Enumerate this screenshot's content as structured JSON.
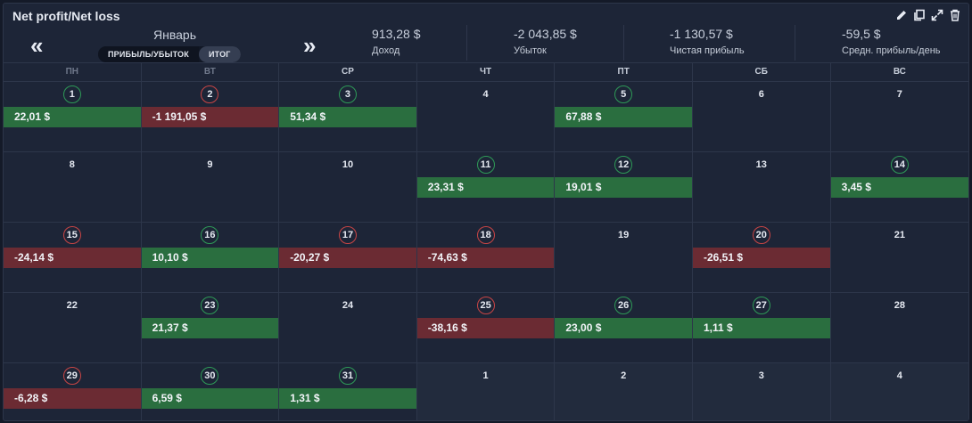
{
  "widget": {
    "title": "Net profit/Net loss"
  },
  "tools": [
    "pencil-icon",
    "copy-icon",
    "expand-icon",
    "trash-icon"
  ],
  "nav": {
    "prev": "«",
    "next": "»",
    "month": "Январь"
  },
  "toggle": {
    "left": "ПРИБЫЛЬ/УБЫТОК",
    "right": "ИТОГ"
  },
  "stats": [
    {
      "value": "913,28 $",
      "label": "Доход"
    },
    {
      "value": "-2 043,85 $",
      "label": "Убыток"
    },
    {
      "value": "-1 130,57 $",
      "label": "Чистая прибыль"
    },
    {
      "value": "-59,5 $",
      "label": "Средн. прибыль/день"
    }
  ],
  "weekdays": [
    "ПН",
    "ВТ",
    "СР",
    "ЧТ",
    "ПТ",
    "СБ",
    "ВС"
  ],
  "weeks": [
    [
      {
        "day": "1",
        "pl": "22,01 $",
        "sign": "pos"
      },
      {
        "day": "2",
        "pl": "-1 191,05 $",
        "sign": "neg"
      },
      {
        "day": "3",
        "pl": "51,34 $",
        "sign": "pos"
      },
      {
        "day": "4",
        "pl": "",
        "sign": ""
      },
      {
        "day": "5",
        "pl": "67,88 $",
        "sign": "pos"
      },
      {
        "day": "6",
        "pl": "",
        "sign": ""
      },
      {
        "day": "7",
        "pl": "",
        "sign": ""
      }
    ],
    [
      {
        "day": "8",
        "pl": "",
        "sign": ""
      },
      {
        "day": "9",
        "pl": "",
        "sign": ""
      },
      {
        "day": "10",
        "pl": "",
        "sign": ""
      },
      {
        "day": "11",
        "pl": "23,31 $",
        "sign": "pos"
      },
      {
        "day": "12",
        "pl": "19,01 $",
        "sign": "pos"
      },
      {
        "day": "13",
        "pl": "",
        "sign": ""
      },
      {
        "day": "14",
        "pl": "3,45 $",
        "sign": "pos"
      }
    ],
    [
      {
        "day": "15",
        "pl": "-24,14 $",
        "sign": "neg"
      },
      {
        "day": "16",
        "pl": "10,10 $",
        "sign": "pos"
      },
      {
        "day": "17",
        "pl": "-20,27 $",
        "sign": "neg"
      },
      {
        "day": "18",
        "pl": "-74,63 $",
        "sign": "neg"
      },
      {
        "day": "19",
        "pl": "",
        "sign": ""
      },
      {
        "day": "20",
        "pl": "-26,51 $",
        "sign": "neg"
      },
      {
        "day": "21",
        "pl": "",
        "sign": ""
      }
    ],
    [
      {
        "day": "22",
        "pl": "",
        "sign": ""
      },
      {
        "day": "23",
        "pl": "21,37 $",
        "sign": "pos"
      },
      {
        "day": "24",
        "pl": "",
        "sign": ""
      },
      {
        "day": "25",
        "pl": "-38,16 $",
        "sign": "neg"
      },
      {
        "day": "26",
        "pl": "23,00 $",
        "sign": "pos"
      },
      {
        "day": "27",
        "pl": "1,11 $",
        "sign": "pos"
      },
      {
        "day": "28",
        "pl": "",
        "sign": ""
      }
    ],
    [
      {
        "day": "29",
        "pl": "-6,28 $",
        "sign": "neg"
      },
      {
        "day": "30",
        "pl": "6,59 $",
        "sign": "pos"
      },
      {
        "day": "31",
        "pl": "1,31 $",
        "sign": "pos"
      },
      {
        "day": "1",
        "pl": "",
        "sign": "",
        "other": true
      },
      {
        "day": "2",
        "pl": "",
        "sign": "",
        "other": true
      },
      {
        "day": "3",
        "pl": "",
        "sign": "",
        "other": true
      },
      {
        "day": "4",
        "pl": "",
        "sign": "",
        "other": true
      }
    ]
  ],
  "colors": {
    "positive": "#2a6e3f",
    "negative": "#6b2b33",
    "background": "#1d2537"
  }
}
